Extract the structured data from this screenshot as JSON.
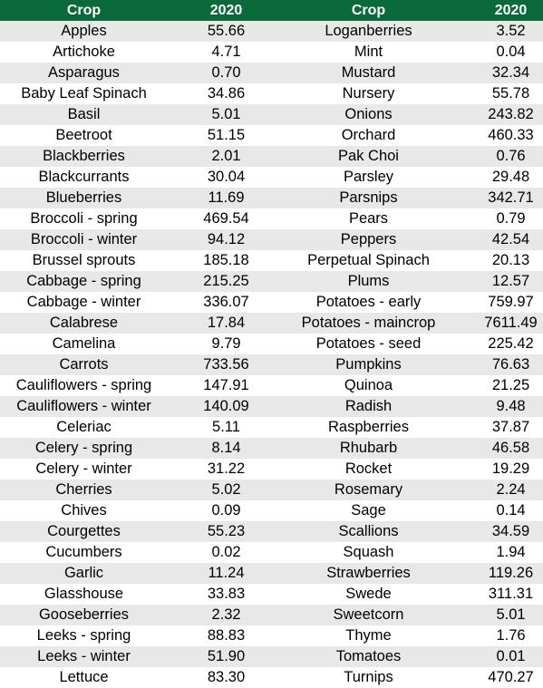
{
  "header": {
    "left_crop": "Crop",
    "left_year": "2020",
    "right_crop": "Crop",
    "right_year": "2020"
  },
  "rows": [
    {
      "left_crop": "Apples",
      "left_value": "55.66",
      "right_crop": "Loganberries",
      "right_value": "3.52"
    },
    {
      "left_crop": "Artichoke",
      "left_value": "4.71",
      "right_crop": "Mint",
      "right_value": "0.04"
    },
    {
      "left_crop": "Asparagus",
      "left_value": "0.70",
      "right_crop": "Mustard",
      "right_value": "32.34"
    },
    {
      "left_crop": "Baby Leaf Spinach",
      "left_value": "34.86",
      "right_crop": "Nursery",
      "right_value": "55.78"
    },
    {
      "left_crop": "Basil",
      "left_value": "5.01",
      "right_crop": "Onions",
      "right_value": "243.82"
    },
    {
      "left_crop": "Beetroot",
      "left_value": "51.15",
      "right_crop": "Orchard",
      "right_value": "460.33"
    },
    {
      "left_crop": "Blackberries",
      "left_value": "2.01",
      "right_crop": "Pak Choi",
      "right_value": "0.76"
    },
    {
      "left_crop": "Blackcurrants",
      "left_value": "30.04",
      "right_crop": "Parsley",
      "right_value": "29.48"
    },
    {
      "left_crop": "Blueberries",
      "left_value": "11.69",
      "right_crop": "Parsnips",
      "right_value": "342.71"
    },
    {
      "left_crop": "Broccoli - spring",
      "left_value": "469.54",
      "right_crop": "Pears",
      "right_value": "0.79"
    },
    {
      "left_crop": "Broccoli - winter",
      "left_value": "94.12",
      "right_crop": "Peppers",
      "right_value": "42.54"
    },
    {
      "left_crop": "Brussel sprouts",
      "left_value": "185.18",
      "right_crop": "Perpetual Spinach",
      "right_value": "20.13"
    },
    {
      "left_crop": "Cabbage - spring",
      "left_value": "215.25",
      "right_crop": "Plums",
      "right_value": "12.57"
    },
    {
      "left_crop": "Cabbage - winter",
      "left_value": "336.07",
      "right_crop": "Potatoes - early",
      "right_value": "759.97"
    },
    {
      "left_crop": "Calabrese",
      "left_value": "17.84",
      "right_crop": "Potatoes - maincrop",
      "right_value": "7611.49"
    },
    {
      "left_crop": "Camelina",
      "left_value": "9.79",
      "right_crop": "Potatoes - seed",
      "right_value": "225.42"
    },
    {
      "left_crop": "Carrots",
      "left_value": "733.56",
      "right_crop": "Pumpkins",
      "right_value": "76.63"
    },
    {
      "left_crop": "Cauliflowers - spring",
      "left_value": "147.91",
      "right_crop": "Quinoa",
      "right_value": "21.25"
    },
    {
      "left_crop": "Cauliflowers - winter",
      "left_value": "140.09",
      "right_crop": "Radish",
      "right_value": "9.48"
    },
    {
      "left_crop": "Celeriac",
      "left_value": "5.11",
      "right_crop": "Raspberries",
      "right_value": "37.87"
    },
    {
      "left_crop": "Celery - spring",
      "left_value": "8.14",
      "right_crop": "Rhubarb",
      "right_value": "46.58"
    },
    {
      "left_crop": "Celery - winter",
      "left_value": "31.22",
      "right_crop": "Rocket",
      "right_value": "19.29"
    },
    {
      "left_crop": "Cherries",
      "left_value": "5.02",
      "right_crop": "Rosemary",
      "right_value": "2.24"
    },
    {
      "left_crop": "Chives",
      "left_value": "0.09",
      "right_crop": "Sage",
      "right_value": "0.14"
    },
    {
      "left_crop": "Courgettes",
      "left_value": "55.23",
      "right_crop": "Scallions",
      "right_value": "34.59"
    },
    {
      "left_crop": "Cucumbers",
      "left_value": "0.02",
      "right_crop": "Squash",
      "right_value": "1.94"
    },
    {
      "left_crop": "Garlic",
      "left_value": "11.24",
      "right_crop": "Strawberries",
      "right_value": "119.26"
    },
    {
      "left_crop": "Glasshouse",
      "left_value": "33.83",
      "right_crop": "Swede",
      "right_value": "311.31"
    },
    {
      "left_crop": "Gooseberries",
      "left_value": "2.32",
      "right_crop": "Sweetcorn",
      "right_value": "5.01"
    },
    {
      "left_crop": "Leeks - spring",
      "left_value": "88.83",
      "right_crop": "Thyme",
      "right_value": "1.76"
    },
    {
      "left_crop": "Leeks - winter",
      "left_value": "51.90",
      "right_crop": "Tomatoes",
      "right_value": "0.01"
    },
    {
      "left_crop": "Lettuce",
      "left_value": "83.30",
      "right_crop": "Turnips",
      "right_value": "470.27"
    }
  ],
  "colors": {
    "header_background": "#0a6a3a",
    "header_text": "#ffffff",
    "stripe": "#e8e8e8"
  }
}
